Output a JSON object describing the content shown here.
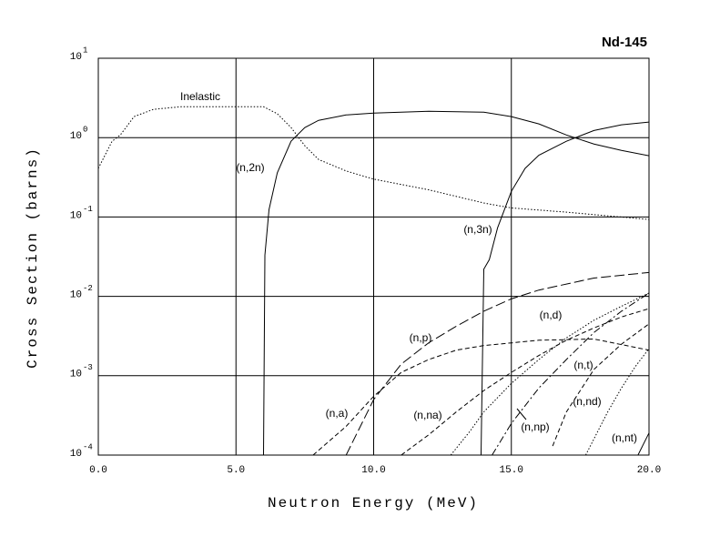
{
  "chart_data": {
    "type": "line",
    "title": "Nd-145",
    "x_label": "Neutron Energy (MeV)",
    "y_label": "Cross Section (barns)",
    "xlim": [
      0,
      20
    ],
    "xticks": [
      {
        "value": 0,
        "label": "0.0"
      },
      {
        "value": 5,
        "label": "5.0"
      },
      {
        "value": 10,
        "label": "10.0"
      },
      {
        "value": 15,
        "label": "15.0"
      },
      {
        "value": 20,
        "label": "20.0"
      }
    ],
    "ylim": [
      0.0001,
      10
    ],
    "log_y": true,
    "yticks": [
      {
        "value": 0.0001,
        "label": "10",
        "exponent": "-4"
      },
      {
        "value": 0.001,
        "label": "10",
        "exponent": "-3"
      },
      {
        "value": 0.01,
        "label": "10",
        "exponent": "-2"
      },
      {
        "value": 0.1,
        "label": "10",
        "exponent": "-1"
      },
      {
        "value": 1,
        "label": "10",
        "exponent": "0"
      },
      {
        "value": 10,
        "label": "10",
        "exponent": "1"
      }
    ],
    "grid": true,
    "series": [
      {
        "name": "Inelastic",
        "color": "#000000",
        "dash": "dotted",
        "x": [
          0,
          0.5,
          0.8,
          1.3,
          2,
          3,
          6,
          6.5,
          7,
          7.5,
          8,
          9,
          10,
          12,
          14,
          15,
          17,
          20
        ],
        "values": [
          0.41,
          0.9,
          1.08,
          1.84,
          2.27,
          2.45,
          2.45,
          2.0,
          1.34,
          0.79,
          0.53,
          0.38,
          0.3,
          0.22,
          0.15,
          0.13,
          0.115,
          0.093
        ]
      },
      {
        "name": "(n,2n)",
        "color": "#000000",
        "dash": "solid",
        "x": [
          6.0,
          6.05,
          6.2,
          6.5,
          7,
          7.5,
          8,
          9,
          10,
          12,
          14,
          15,
          16,
          17,
          18,
          19,
          20
        ],
        "values": [
          0.0001,
          0.033,
          0.124,
          0.36,
          0.9,
          1.34,
          1.65,
          1.93,
          2.04,
          2.15,
          2.09,
          1.84,
          1.49,
          1.08,
          0.83,
          0.69,
          0.59
        ]
      },
      {
        "name": "(n,3n)",
        "color": "#000000",
        "dash": "solid",
        "x": [
          13.9,
          14.0,
          14.2,
          14.5,
          15,
          15.5,
          16,
          17,
          18,
          19,
          20
        ],
        "values": [
          0.0001,
          0.022,
          0.029,
          0.073,
          0.21,
          0.41,
          0.6,
          0.9,
          1.23,
          1.45,
          1.57
        ]
      },
      {
        "name": "(n,p)",
        "color": "#000000",
        "dash": "long-dashed",
        "x": [
          9,
          10,
          11,
          12,
          13,
          14,
          15,
          16,
          18,
          20
        ],
        "values": [
          0.0001,
          0.0005,
          0.0014,
          0.0026,
          0.0042,
          0.0065,
          0.0093,
          0.012,
          0.017,
          0.02
        ]
      },
      {
        "name": "(n,d)",
        "color": "#000000",
        "dash": "dotted",
        "x": [
          12.8,
          13.5,
          14,
          15,
          16,
          17,
          18,
          19,
          20
        ],
        "values": [
          0.0001,
          0.0002,
          0.00035,
          0.0008,
          0.0016,
          0.003,
          0.005,
          0.0075,
          0.011
        ]
      },
      {
        "name": "(n,t)",
        "color": "#000000",
        "dash": "dashed",
        "x": [
          16.5,
          17,
          18,
          19,
          20
        ],
        "values": [
          0.00013,
          0.00035,
          0.0012,
          0.0025,
          0.0045
        ]
      },
      {
        "name": "(n,a)",
        "color": "#000000",
        "dash": "dashed",
        "x": [
          7.8,
          9,
          10,
          11,
          12,
          13,
          14,
          16,
          18,
          20
        ],
        "values": [
          0.0001,
          0.00023,
          0.00055,
          0.0011,
          0.0016,
          0.0021,
          0.0024,
          0.0028,
          0.0029,
          0.0021
        ]
      },
      {
        "name": "(n,na)",
        "color": "#000000",
        "dash": "dashed",
        "x": [
          11,
          12,
          13,
          14,
          15,
          16,
          17,
          18,
          19,
          20
        ],
        "values": [
          0.0001,
          0.00018,
          0.00035,
          0.00065,
          0.0011,
          0.0018,
          0.0028,
          0.004,
          0.0055,
          0.007
        ]
      },
      {
        "name": "(n,np)",
        "color": "#000000",
        "dash": "dash-dot",
        "x": [
          14.3,
          15,
          16,
          17,
          18,
          19,
          20
        ],
        "values": [
          0.0001,
          0.00025,
          0.0007,
          0.0016,
          0.0035,
          0.0065,
          0.011
        ]
      },
      {
        "name": "(n,nd)",
        "color": "#000000",
        "dash": "dotted",
        "x": [
          17.7,
          18,
          18.5,
          19,
          19.5,
          20
        ],
        "values": [
          0.0001,
          0.00016,
          0.00035,
          0.0007,
          0.0013,
          0.0022
        ]
      },
      {
        "name": "(n,nt)",
        "color": "#000000",
        "dash": "solid",
        "x": [
          19.6,
          20
        ],
        "values": [
          0.0001,
          0.00019
        ]
      }
    ]
  }
}
